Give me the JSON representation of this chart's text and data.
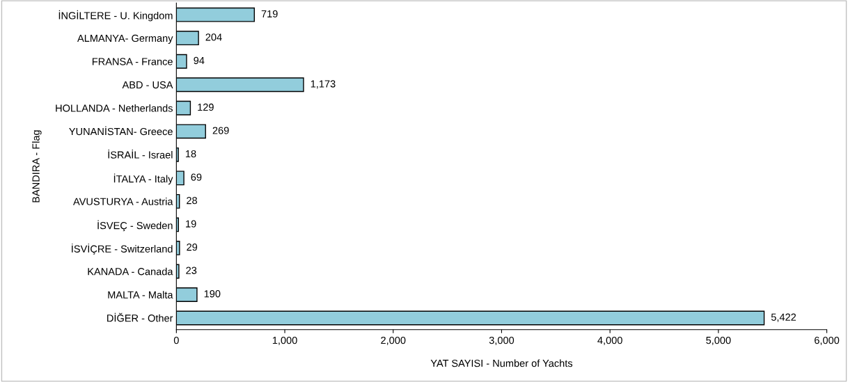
{
  "chart_data": {
    "type": "bar",
    "orientation": "horizontal",
    "xlabel": "YAT SAYISI - Number of Yachts",
    "ylabel": "BANDIRA - Flag",
    "categories": [
      "İNGİLTERE - U. Kingdom",
      "ALMANYA- Germany",
      "FRANSA - France",
      "ABD - USA",
      "HOLLANDA - Netherlands",
      "YUNANİSTAN- Greece",
      "İSRAİL - Israel",
      "İTALYA - Italy",
      "AVUSTURYA - Austria",
      "İSVEÇ - Sweden",
      "İSVİÇRE - Switzerland",
      "KANADA - Canada",
      "MALTA - Malta",
      "DİĞER - Other"
    ],
    "values": [
      719,
      204,
      94,
      1173,
      129,
      269,
      18,
      69,
      28,
      19,
      29,
      23,
      190,
      5422
    ],
    "value_labels": [
      "719",
      "204",
      "94",
      "1,173",
      "129",
      "269",
      "18",
      "69",
      "28",
      "19",
      "29",
      "23",
      "190",
      "5,422"
    ],
    "color": "#92cddc",
    "xlim": [
      0,
      6000
    ],
    "xticks": [
      0,
      {
        "value": 1000,
        "label": "1,000"
      },
      {
        "value": 2000,
        "label": "2,000"
      },
      {
        "value": 3000,
        "label": "3,000"
      },
      {
        "value": 4000,
        "label": "4,000"
      },
      {
        "value": 5000,
        "label": "5,000"
      },
      {
        "value": 6000,
        "label": "6,000"
      }
    ],
    "grid": false,
    "legend": false
  }
}
